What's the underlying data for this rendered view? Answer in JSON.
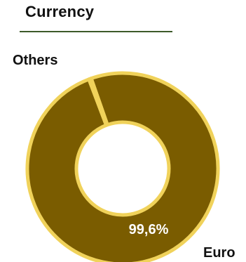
{
  "chart_data": {
    "type": "pie",
    "title": "Currency",
    "donut": true,
    "categories": [
      "Euro",
      "Others"
    ],
    "values": [
      99.6,
      0.4
    ],
    "data_labels": [
      "99,6%",
      ""
    ],
    "colors": {
      "slice_fill": "#7a5c00",
      "slice_stroke": "#f0d25a",
      "title_rule": "#3d5a2a"
    },
    "legend": "none"
  }
}
